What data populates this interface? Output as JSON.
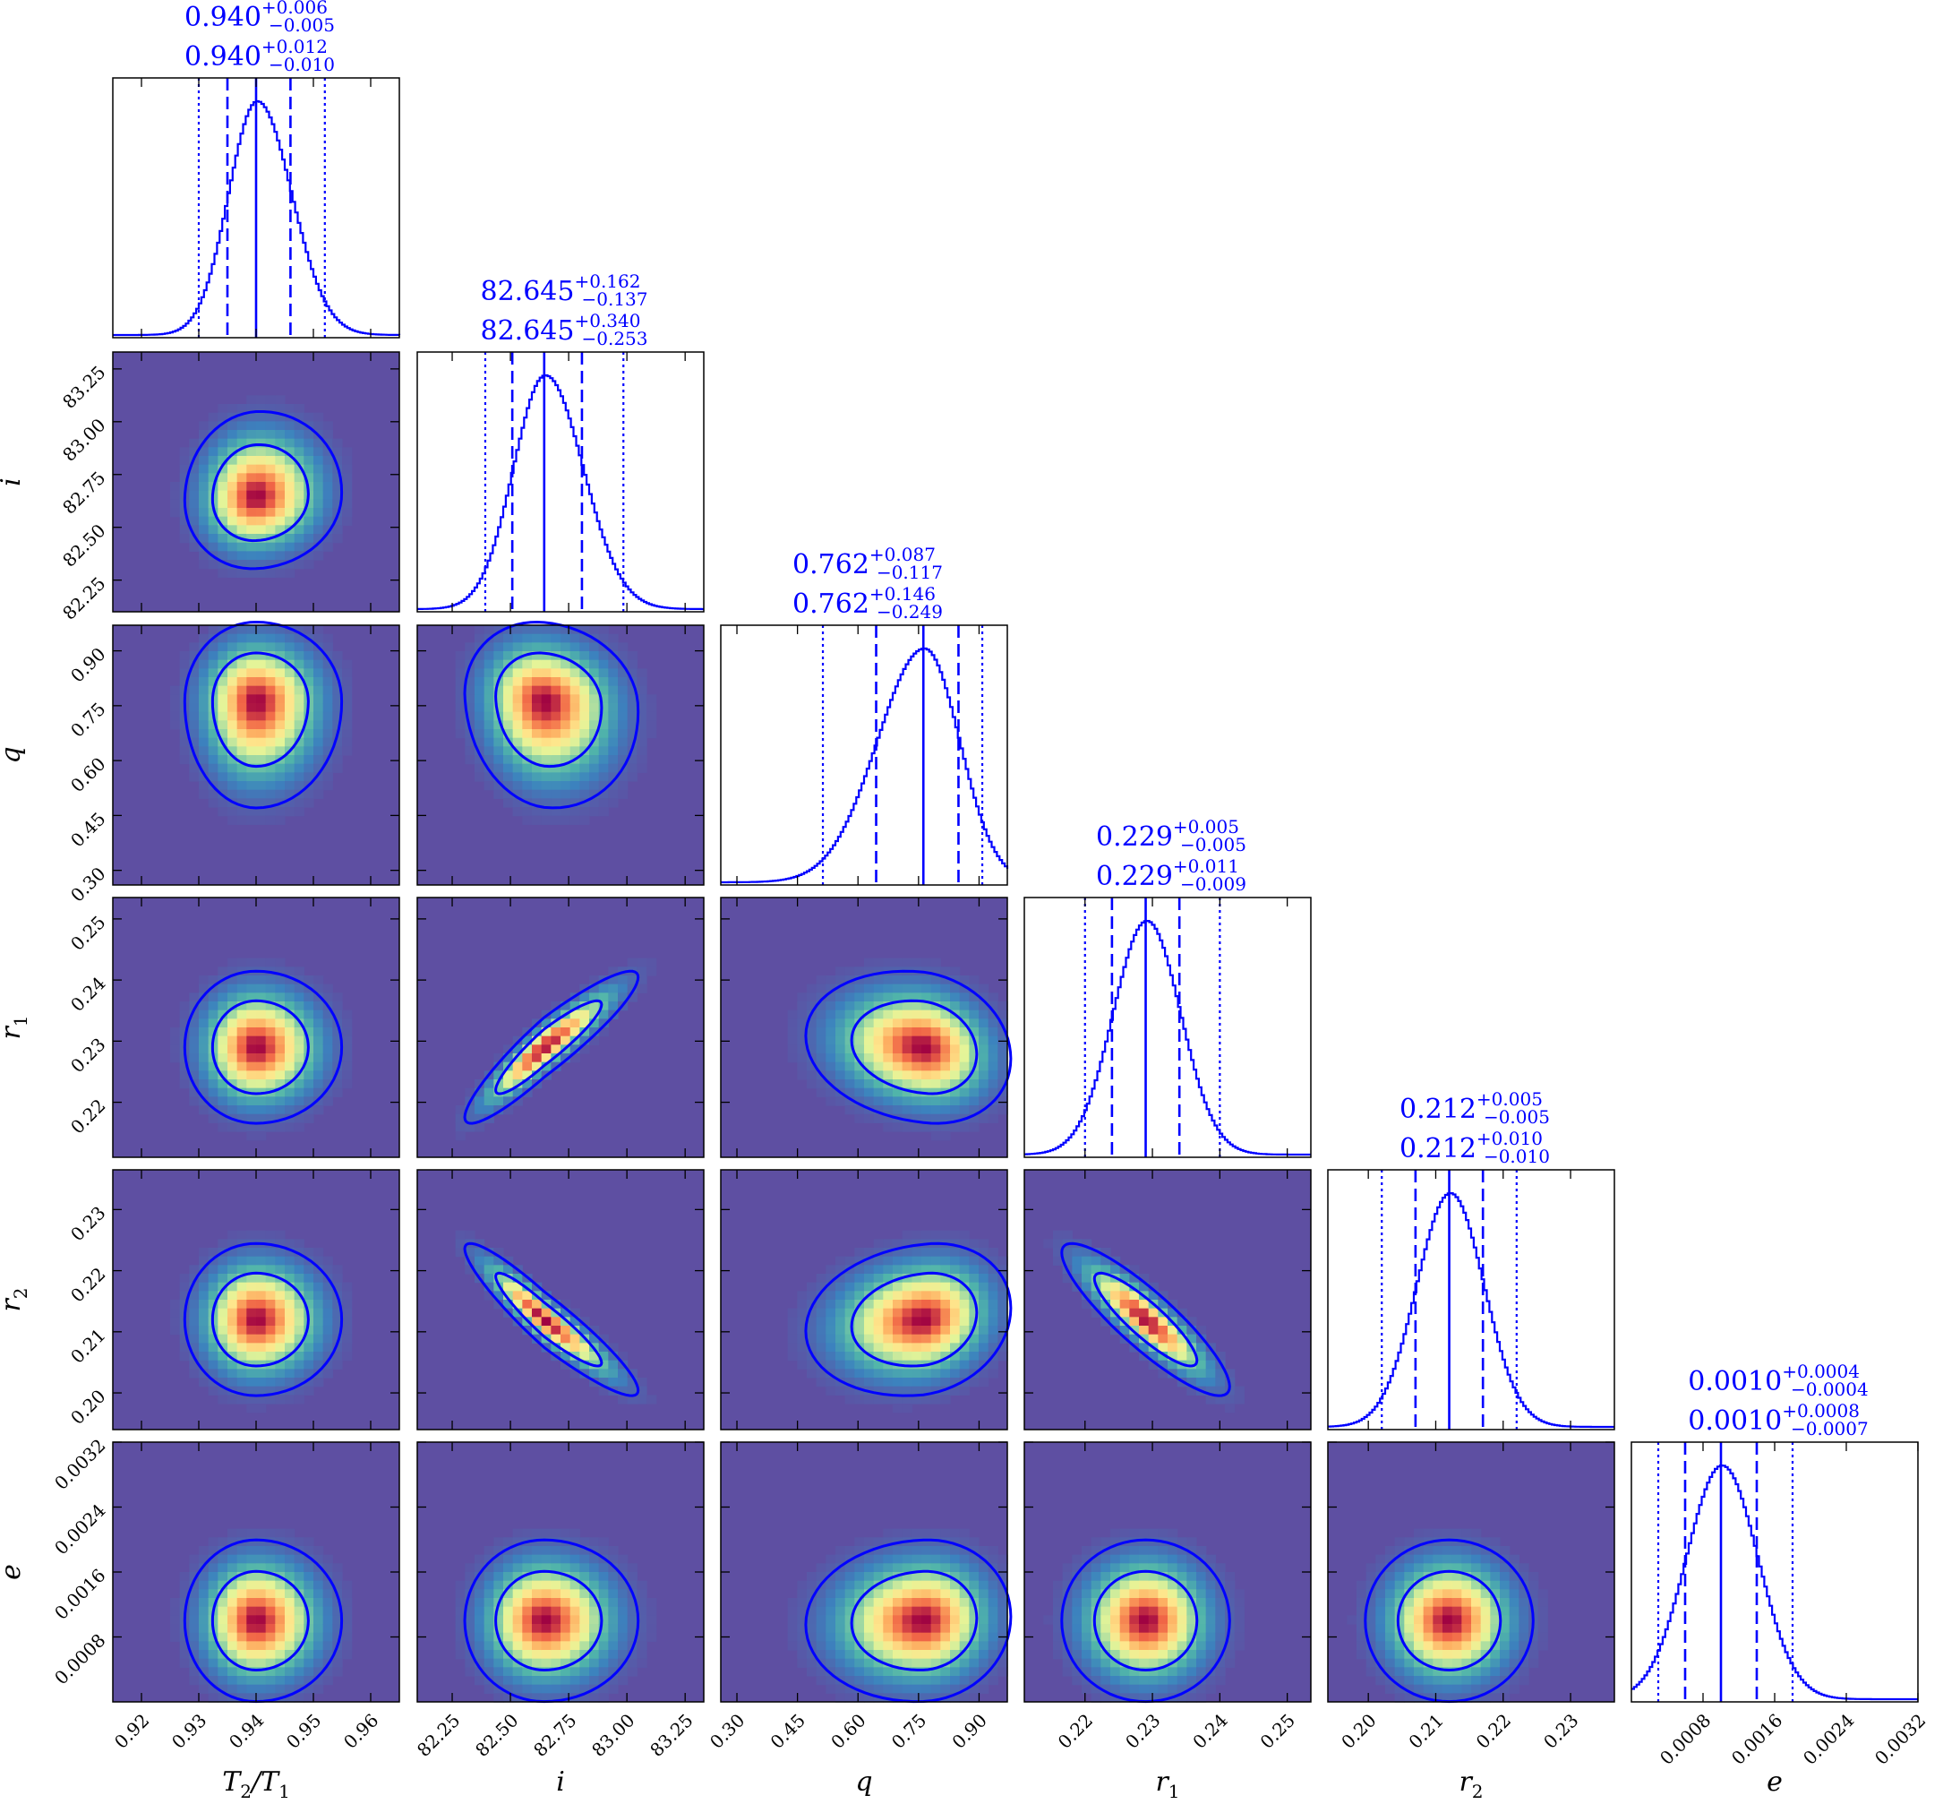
{
  "chart_data": {
    "type": "corner",
    "parameters": [
      {
        "key": "T2T1",
        "label": "T2/T1",
        "range": [
          0.915,
          0.965
        ],
        "ticks": [
          0.92,
          0.93,
          0.94,
          0.95,
          0.96
        ],
        "tick_labels": [
          "0.92",
          "0.93",
          "0.94",
          "0.95",
          "0.96"
        ],
        "median": 0.94,
        "sigma1": [
          0.005,
          0.006
        ],
        "sigma2": [
          0.01,
          0.012
        ],
        "title_1sigma": {
          "value": "0.940",
          "plus": "+0.006",
          "minus": "−0.005"
        },
        "title_2sigma": {
          "value": "0.940",
          "plus": "+0.012",
          "minus": "−0.010"
        }
      },
      {
        "key": "i",
        "label": "i",
        "range": [
          82.1,
          83.33
        ],
        "ticks": [
          82.25,
          82.5,
          82.75,
          83.0,
          83.25
        ],
        "tick_labels": [
          "82.25",
          "82.50",
          "82.75",
          "83.00",
          "83.25"
        ],
        "median": 82.645,
        "sigma1": [
          0.137,
          0.162
        ],
        "sigma2": [
          0.253,
          0.34
        ],
        "title_1sigma": {
          "value": "82.645",
          "plus": "+0.162",
          "minus": "−0.137"
        },
        "title_2sigma": {
          "value": "82.645",
          "plus": "+0.340",
          "minus": "−0.253"
        }
      },
      {
        "key": "q",
        "label": "q",
        "range": [
          0.26,
          0.97
        ],
        "ticks": [
          0.3,
          0.45,
          0.6,
          0.75,
          0.9
        ],
        "tick_labels": [
          "0.30",
          "0.45",
          "0.60",
          "0.75",
          "0.90"
        ],
        "median": 0.762,
        "sigma1": [
          0.117,
          0.087
        ],
        "sigma2": [
          0.249,
          0.146
        ],
        "title_1sigma": {
          "value": "0.762",
          "plus": "+0.087",
          "minus": "−0.117"
        },
        "title_2sigma": {
          "value": "0.762",
          "plus": "+0.146",
          "minus": "−0.249"
        }
      },
      {
        "key": "r1",
        "label": "r1",
        "range": [
          0.211,
          0.2535
        ],
        "ticks": [
          0.22,
          0.23,
          0.24,
          0.25
        ],
        "tick_labels": [
          "0.22",
          "0.23",
          "0.24",
          "0.25"
        ],
        "median": 0.229,
        "sigma1": [
          0.005,
          0.005
        ],
        "sigma2": [
          0.009,
          0.011
        ],
        "title_1sigma": {
          "value": "0.229",
          "plus": "+0.005",
          "minus": "−0.005"
        },
        "title_2sigma": {
          "value": "0.229",
          "plus": "+0.011",
          "minus": "−0.009"
        }
      },
      {
        "key": "r2",
        "label": "r2",
        "range": [
          0.194,
          0.2365
        ],
        "ticks": [
          0.2,
          0.21,
          0.22,
          0.23
        ],
        "tick_labels": [
          "0.20",
          "0.21",
          "0.22",
          "0.23"
        ],
        "median": 0.212,
        "sigma1": [
          0.005,
          0.005
        ],
        "sigma2": [
          0.01,
          0.01
        ],
        "title_1sigma": {
          "value": "0.212",
          "plus": "+0.005",
          "minus": "−0.005"
        },
        "title_2sigma": {
          "value": "0.212",
          "plus": "+0.010",
          "minus": "−0.010"
        }
      },
      {
        "key": "e",
        "label": "e",
        "range": [
          0.0,
          0.0032
        ],
        "ticks": [
          0.0008,
          0.0016,
          0.0024,
          0.0032
        ],
        "tick_labels": [
          "0.0008",
          "0.0016",
          "0.0024",
          "0.0032"
        ],
        "median": 0.001,
        "sigma1": [
          0.0004,
          0.0004
        ],
        "sigma2": [
          0.0007,
          0.0008
        ],
        "title_1sigma": {
          "value": "0.0010",
          "plus": "+0.0004",
          "minus": "−0.0004"
        },
        "title_2sigma": {
          "value": "0.0010",
          "plus": "+0.0008",
          "minus": "−0.0007"
        }
      }
    ],
    "correlations": {
      "1-0": 0.05,
      "2-0": 0.0,
      "2-1": -0.1,
      "3-0": 0.0,
      "3-1": 0.92,
      "3-2": -0.15,
      "4-0": 0.0,
      "4-1": -0.93,
      "4-2": 0.15,
      "4-3": -0.88,
      "5-0": 0.0,
      "5-1": 0.0,
      "5-2": 0.05,
      "5-3": 0.0,
      "5-4": 0.0
    },
    "colormap": "Spectral_r",
    "line_color": "#0000ff",
    "background_color": "#5e4fa2",
    "contour_levels": [
      "1-sigma",
      "2-sigma"
    ],
    "histogram_lines": [
      "median (solid)",
      "1-sigma (dashed)",
      "2-sigma (dotted)"
    ]
  }
}
